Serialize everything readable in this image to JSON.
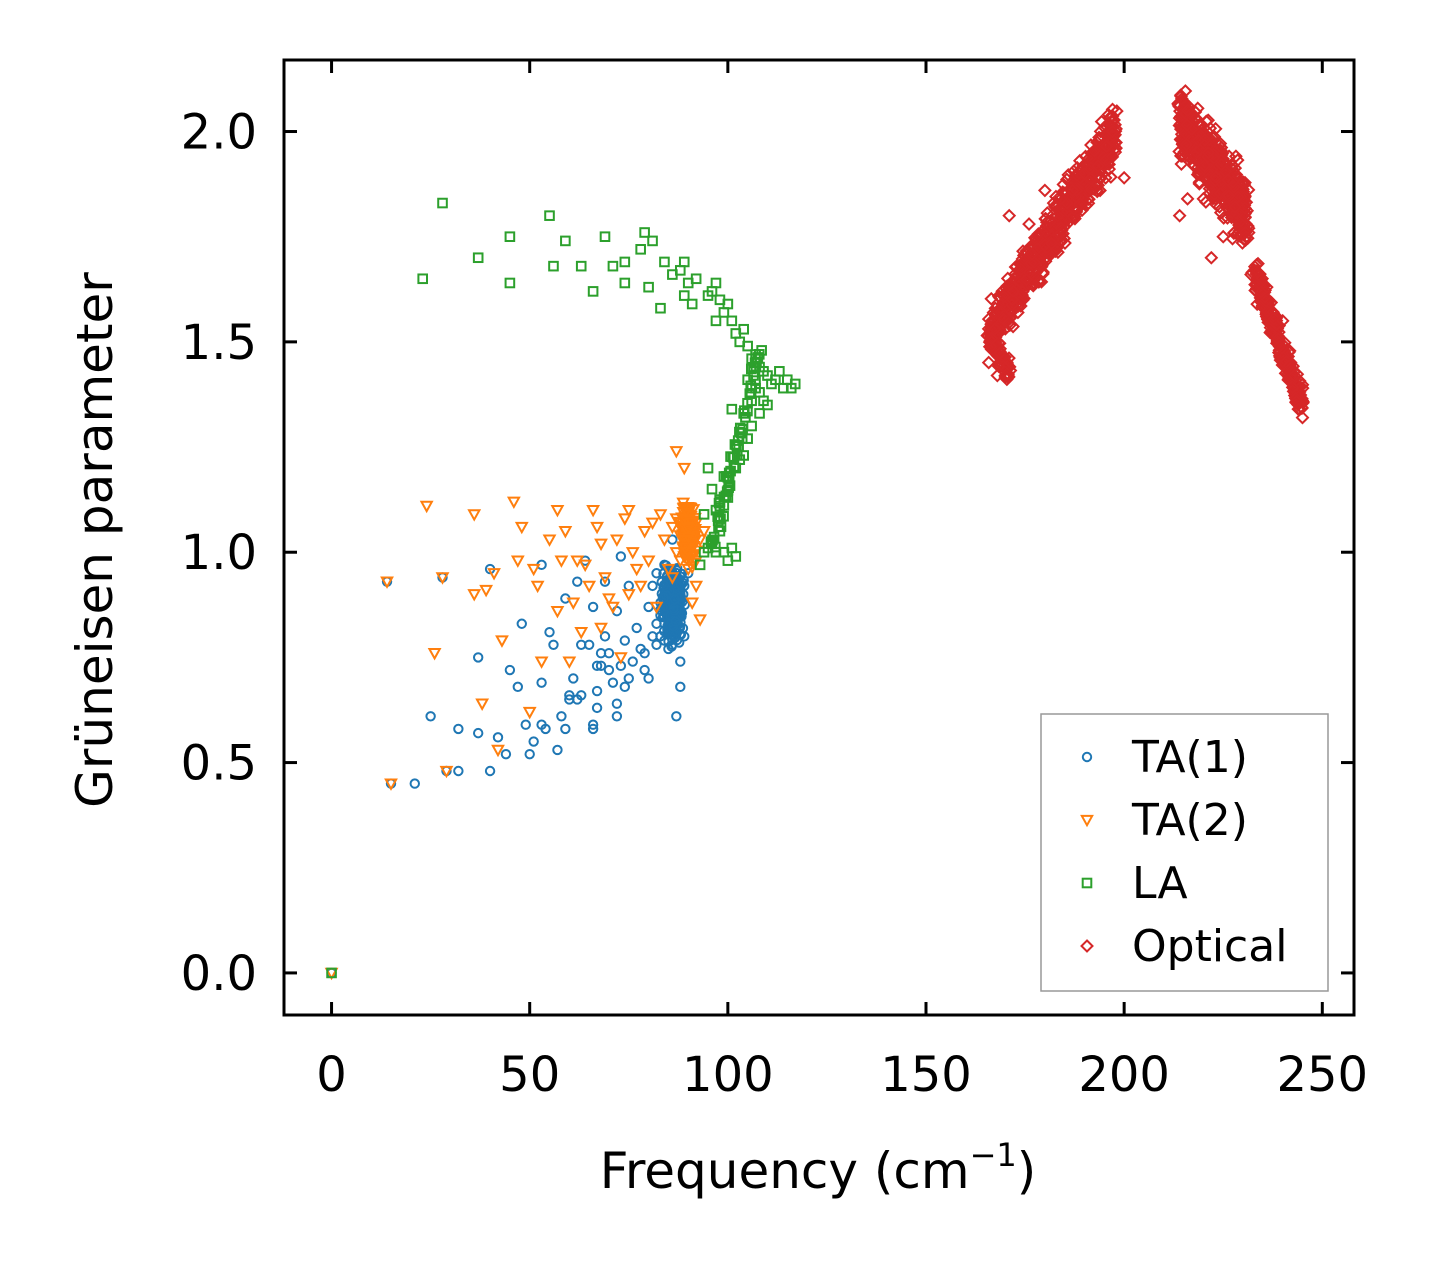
{
  "chart_data": {
    "type": "scatter",
    "title": "",
    "xlabel": "Frequency (cm",
    "xlabel_superscript": "−1",
    "xlabel_suffix": ")",
    "ylabel": "Grüneisen parameter",
    "xlim": [
      -12,
      258
    ],
    "ylim": [
      -0.1,
      2.17
    ],
    "xticks": [
      0,
      50,
      100,
      150,
      200,
      250
    ],
    "xtick_labels": [
      "0",
      "50",
      "100",
      "150",
      "200",
      "250"
    ],
    "yticks": [
      0.0,
      0.5,
      1.0,
      1.5,
      2.0
    ],
    "ytick_labels": [
      "0.0",
      "0.5",
      "1.0",
      "1.5",
      "2.0"
    ],
    "grid": false,
    "legend_position": "lower-right",
    "series": [
      {
        "name": "TA(1)",
        "marker": "circle",
        "color": "#1f77b4",
        "points": [
          [
            0,
            0.0
          ],
          [
            14,
            0.93
          ],
          [
            15,
            0.45
          ],
          [
            21,
            0.45
          ],
          [
            25,
            0.61
          ],
          [
            28,
            0.94
          ],
          [
            29,
            0.48
          ],
          [
            32,
            0.48
          ],
          [
            32,
            0.58
          ],
          [
            37,
            0.75
          ],
          [
            37,
            0.57
          ],
          [
            40,
            0.96
          ],
          [
            40,
            0.48
          ],
          [
            42,
            0.56
          ],
          [
            44,
            0.52
          ],
          [
            45,
            0.72
          ],
          [
            47,
            0.68
          ],
          [
            48,
            0.83
          ],
          [
            49,
            0.59
          ],
          [
            50,
            0.52
          ],
          [
            51,
            0.55
          ],
          [
            53,
            0.97
          ],
          [
            53,
            0.69
          ],
          [
            53,
            0.59
          ],
          [
            54,
            0.58
          ],
          [
            55,
            0.81
          ],
          [
            56,
            0.78
          ],
          [
            57,
            0.53
          ],
          [
            58,
            0.61
          ],
          [
            59,
            0.89
          ],
          [
            59,
            0.58
          ],
          [
            60,
            0.65
          ],
          [
            60,
            0.66
          ],
          [
            61,
            0.7
          ],
          [
            62,
            0.93
          ],
          [
            62,
            0.65
          ],
          [
            63,
            0.78
          ],
          [
            63,
            0.66
          ],
          [
            64,
            0.98
          ],
          [
            65,
            0.78
          ],
          [
            66,
            0.87
          ],
          [
            66,
            0.58
          ],
          [
            66,
            0.59
          ],
          [
            67,
            0.73
          ],
          [
            67,
            0.63
          ],
          [
            67,
            0.67
          ],
          [
            68,
            0.73
          ],
          [
            68,
            0.76
          ],
          [
            69,
            0.93
          ],
          [
            69,
            0.8
          ],
          [
            70,
            0.72
          ],
          [
            70,
            0.76
          ],
          [
            71,
            0.69
          ],
          [
            72,
            0.61
          ],
          [
            72,
            0.64
          ],
          [
            72,
            0.86
          ],
          [
            73,
            0.99
          ],
          [
            73,
            0.73
          ],
          [
            74,
            0.68
          ],
          [
            74,
            0.79
          ],
          [
            75,
            0.92
          ],
          [
            75,
            0.7
          ],
          [
            76,
            0.74
          ],
          [
            77,
            0.82
          ],
          [
            78,
            0.77
          ],
          [
            79,
            0.72
          ],
          [
            80,
            0.87
          ],
          [
            80,
            0.7
          ],
          [
            81,
            0.92
          ],
          [
            82,
            0.78
          ],
          [
            82,
            0.95
          ],
          [
            83,
            0.85
          ],
          [
            83,
            0.8
          ],
          [
            84,
            0.9
          ],
          [
            84,
            0.83
          ],
          [
            85,
            0.93
          ],
          [
            85,
            0.88
          ],
          [
            86,
            1.03
          ],
          [
            86,
            0.85
          ],
          [
            87,
            0.61
          ],
          [
            87,
            0.96
          ],
          [
            88,
            0.74
          ],
          [
            88,
            0.68
          ],
          [
            88,
            0.9
          ],
          [
            89,
            0.92
          ],
          [
            89,
            0.8
          ],
          [
            90,
            1.0
          ],
          [
            90,
            0.95
          ],
          [
            84,
            0.79
          ],
          [
            85,
            0.77
          ],
          [
            86,
            0.82
          ],
          [
            83,
            0.88
          ],
          [
            87,
            0.86
          ],
          [
            82,
            0.83
          ],
          [
            81,
            0.8
          ],
          [
            86,
            0.78
          ],
          [
            88,
            0.85
          ],
          [
            84,
            0.97
          ],
          [
            85,
            0.81
          ],
          [
            79,
            0.76
          ]
        ]
      },
      {
        "name": "TA(2)",
        "marker": "triangle-down",
        "color": "#ff7f0e",
        "points": [
          [
            0,
            0.0
          ],
          [
            14,
            0.93
          ],
          [
            15,
            0.45
          ],
          [
            24,
            1.11
          ],
          [
            26,
            0.76
          ],
          [
            28,
            0.94
          ],
          [
            29,
            0.48
          ],
          [
            36,
            0.9
          ],
          [
            36,
            1.09
          ],
          [
            38,
            0.64
          ],
          [
            39,
            0.91
          ],
          [
            41,
            0.95
          ],
          [
            42,
            0.53
          ],
          [
            43,
            0.79
          ],
          [
            46,
            1.12
          ],
          [
            47,
            0.98
          ],
          [
            48,
            1.06
          ],
          [
            50,
            0.62
          ],
          [
            51,
            0.96
          ],
          [
            52,
            0.92
          ],
          [
            53,
            0.74
          ],
          [
            55,
            1.03
          ],
          [
            57,
            1.1
          ],
          [
            57,
            0.86
          ],
          [
            58,
            0.98
          ],
          [
            59,
            1.05
          ],
          [
            60,
            0.74
          ],
          [
            61,
            0.88
          ],
          [
            62,
            0.98
          ],
          [
            63,
            0.81
          ],
          [
            64,
            0.97
          ],
          [
            65,
            0.92
          ],
          [
            66,
            1.1
          ],
          [
            67,
            1.06
          ],
          [
            68,
            1.02
          ],
          [
            68,
            0.82
          ],
          [
            69,
            0.94
          ],
          [
            70,
            0.89
          ],
          [
            71,
            0.87
          ],
          [
            72,
            1.03
          ],
          [
            73,
            0.75
          ],
          [
            74,
            1.08
          ],
          [
            75,
            1.1
          ],
          [
            75,
            0.9
          ],
          [
            76,
            1.0
          ],
          [
            77,
            0.96
          ],
          [
            78,
            0.92
          ],
          [
            79,
            1.05
          ],
          [
            80,
            0.98
          ],
          [
            81,
            1.07
          ],
          [
            82,
            0.87
          ],
          [
            83,
            1.09
          ],
          [
            84,
            1.03
          ],
          [
            85,
            0.96
          ],
          [
            86,
            1.06
          ],
          [
            87,
            1.24
          ],
          [
            87,
            1.0
          ],
          [
            88,
            1.04
          ],
          [
            89,
            1.2
          ],
          [
            89,
            1.08
          ],
          [
            90,
            0.96
          ],
          [
            90,
            1.1
          ],
          [
            91,
            0.88
          ],
          [
            91,
            1.02
          ],
          [
            92,
            0.92
          ],
          [
            92,
            1.07
          ],
          [
            93,
            0.84
          ],
          [
            93,
            1.03
          ],
          [
            94,
            1.05
          ],
          [
            86,
            0.94
          ],
          [
            88,
            0.98
          ],
          [
            90,
            1.05
          ],
          [
            89,
            0.99
          ],
          [
            91,
            1.06
          ],
          [
            87,
            1.08
          ],
          [
            92,
            0.98
          ]
        ]
      },
      {
        "name": "LA",
        "marker": "square",
        "color": "#2ca02c",
        "points": [
          [
            0,
            0.0
          ],
          [
            23,
            1.65
          ],
          [
            28,
            1.83
          ],
          [
            37,
            1.7
          ],
          [
            45,
            1.75
          ],
          [
            45,
            1.64
          ],
          [
            55,
            1.8
          ],
          [
            56,
            1.68
          ],
          [
            59,
            1.74
          ],
          [
            63,
            1.68
          ],
          [
            66,
            1.62
          ],
          [
            69,
            1.75
          ],
          [
            71,
            1.68
          ],
          [
            74,
            1.69
          ],
          [
            74,
            1.64
          ],
          [
            78,
            1.72
          ],
          [
            79,
            1.76
          ],
          [
            80,
            1.63
          ],
          [
            81,
            1.74
          ],
          [
            83,
            1.58
          ],
          [
            84,
            1.69
          ],
          [
            86,
            1.66
          ],
          [
            88,
            1.67
          ],
          [
            89,
            1.69
          ],
          [
            89,
            1.61
          ],
          [
            90,
            1.64
          ],
          [
            91,
            1.59
          ],
          [
            92,
            1.65
          ],
          [
            95,
            1.61
          ],
          [
            96,
            1.62
          ],
          [
            97,
            1.64
          ],
          [
            97,
            1.55
          ],
          [
            98,
            1.6
          ],
          [
            99,
            1.57
          ],
          [
            100,
            1.59
          ],
          [
            101,
            1.55
          ],
          [
            102,
            1.52
          ],
          [
            103,
            1.5
          ],
          [
            104,
            1.53
          ],
          [
            105,
            1.49
          ],
          [
            106,
            1.46
          ],
          [
            107,
            1.47
          ],
          [
            108,
            1.44
          ],
          [
            109,
            1.43
          ],
          [
            110,
            1.42
          ],
          [
            111,
            1.4
          ],
          [
            112,
            1.41
          ],
          [
            113,
            1.43
          ],
          [
            114,
            1.39
          ],
          [
            115,
            1.41
          ],
          [
            116,
            1.39
          ],
          [
            117,
            1.4
          ],
          [
            107,
            1.39
          ],
          [
            108,
            1.33
          ],
          [
            109,
            1.36
          ],
          [
            106,
            1.3
          ],
          [
            105,
            1.27
          ],
          [
            104,
            1.33
          ],
          [
            103,
            1.22
          ],
          [
            102,
            1.2
          ],
          [
            101,
            1.34
          ],
          [
            100,
            1.13
          ],
          [
            99,
            1.18
          ],
          [
            98,
            1.12
          ],
          [
            97,
            1.1
          ],
          [
            96,
            1.02
          ],
          [
            95,
            1.01
          ],
          [
            94,
            1.0
          ],
          [
            93,
            0.97
          ],
          [
            99,
            1.0
          ],
          [
            100,
            0.98
          ],
          [
            101,
            1.01
          ],
          [
            102,
            0.99
          ],
          [
            98,
            1.05
          ],
          [
            97,
            1.0
          ],
          [
            96,
            1.15
          ],
          [
            95,
            1.2
          ],
          [
            94,
            1.09
          ],
          [
            104,
            1.23
          ],
          [
            106,
            1.36
          ],
          [
            108,
            1.38
          ],
          [
            110,
            1.35
          ],
          [
            105,
            1.41
          ],
          [
            107,
            1.45
          ]
        ]
      },
      {
        "name": "Optical",
        "marker": "diamond",
        "color": "#d62728",
        "clusters": [
          {
            "from": [
              166,
              1.52
            ],
            "to": [
              198,
              2.0
            ],
            "spread": 0.09,
            "count": 700,
            "tail_from": [
              166,
              1.52
            ],
            "tail_to": [
              171,
              1.42
            ]
          },
          {
            "from": [
              214,
              2.03
            ],
            "to": [
              231,
              1.8
            ],
            "spread": 0.11,
            "count": 600
          },
          {
            "from": [
              233,
              1.66
            ],
            "to": [
              245,
              1.35
            ],
            "spread": 0.05,
            "count": 250
          }
        ],
        "points": [
          [
            171,
            1.8
          ],
          [
            176,
            1.78
          ],
          [
            180,
            1.86
          ],
          [
            184,
            1.84
          ],
          [
            187,
            1.86
          ],
          [
            190,
            1.9
          ],
          [
            195,
            2.01
          ],
          [
            197,
            2.0
          ],
          [
            200,
            1.89
          ],
          [
            168,
            1.42
          ],
          [
            170,
            1.42
          ],
          [
            172,
            1.62
          ],
          [
            216,
            2.05
          ],
          [
            218,
            2.03
          ],
          [
            220,
            1.84
          ],
          [
            222,
            1.7
          ],
          [
            225,
            1.75
          ],
          [
            228,
            1.82
          ],
          [
            230,
            1.88
          ],
          [
            214,
            1.8
          ],
          [
            216,
            1.84
          ],
          [
            232,
            1.66
          ],
          [
            236,
            1.63
          ],
          [
            240,
            1.55
          ],
          [
            243,
            1.42
          ],
          [
            244,
            1.34
          ],
          [
            245,
            1.32
          ]
        ]
      }
    ]
  }
}
